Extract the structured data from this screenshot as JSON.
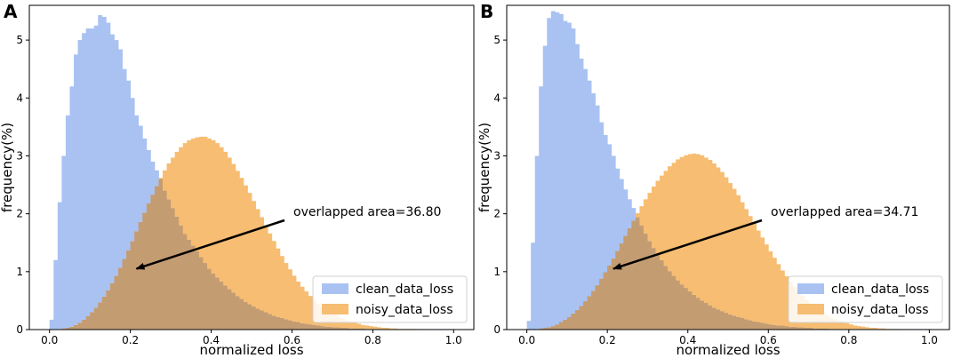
{
  "colors": {
    "clean": "#a9c2f2",
    "noisy": "#f7bd72",
    "overlap": "#c49c72",
    "arrow": "#000000"
  },
  "chart_data": [
    {
      "type": "histogram",
      "panel_label": "A",
      "xlabel": "normalized loss",
      "ylabel": "frequency(%)",
      "xlim": [
        -0.05,
        1.05
      ],
      "ylim": [
        0,
        5.6
      ],
      "xticks": [
        "0.0",
        "0.2",
        "0.4",
        "0.6",
        "0.8",
        "1.0"
      ],
      "yticks": [
        "0",
        "1",
        "2",
        "3",
        "4",
        "5"
      ],
      "bin_width": 0.01,
      "legend": [
        "clean_data_loss",
        "noisy_data_loss"
      ],
      "annotation": "overlapped area=36.80",
      "series": [
        {
          "name": "clean_data_loss",
          "x_start": 0.0,
          "values": [
            0.17,
            1.2,
            2.2,
            3.0,
            3.7,
            4.2,
            4.75,
            5.0,
            5.12,
            5.2,
            5.2,
            5.25,
            5.43,
            5.4,
            5.3,
            5.1,
            5.0,
            4.84,
            4.5,
            4.3,
            4.0,
            3.7,
            3.52,
            3.3,
            3.1,
            2.9,
            2.75,
            2.6,
            2.4,
            2.25,
            2.1,
            1.95,
            1.8,
            1.65,
            1.55,
            1.45,
            1.35,
            1.25,
            1.15,
            1.05,
            0.97,
            0.9,
            0.83,
            0.76,
            0.7,
            0.64,
            0.58,
            0.53,
            0.48,
            0.44,
            0.4,
            0.36,
            0.33,
            0.3,
            0.27,
            0.24,
            0.22,
            0.2,
            0.18,
            0.16,
            0.14,
            0.13,
            0.11,
            0.1,
            0.09,
            0.08,
            0.07,
            0.06,
            0.05,
            0.05,
            0.04,
            0.04,
            0.03,
            0.03,
            0.02,
            0.02,
            0.02,
            0.02,
            0.01,
            0.01,
            0.01,
            0.01,
            0.01,
            0.01,
            0.01,
            0.01,
            0.01,
            0.01,
            0.01,
            0.01,
            0.01,
            0.01,
            0.01,
            0.01,
            0.01,
            0.01,
            0.01,
            0.01,
            0.01,
            0.01
          ]
        },
        {
          "name": "noisy_data_loss",
          "x_start": 0.0,
          "values": [
            0.0,
            0.0,
            0.01,
            0.02,
            0.03,
            0.05,
            0.08,
            0.12,
            0.17,
            0.23,
            0.3,
            0.38,
            0.47,
            0.57,
            0.68,
            0.8,
            0.93,
            1.07,
            1.22,
            1.37,
            1.53,
            1.7,
            1.86,
            2.02,
            2.18,
            2.33,
            2.48,
            2.62,
            2.75,
            2.87,
            2.97,
            3.07,
            3.15,
            3.22,
            3.27,
            3.3,
            3.32,
            3.33,
            3.33,
            3.3,
            3.27,
            3.22,
            3.15,
            3.07,
            2.97,
            2.86,
            2.74,
            2.62,
            2.49,
            2.36,
            2.22,
            2.08,
            1.94,
            1.8,
            1.66,
            1.53,
            1.4,
            1.27,
            1.15,
            1.04,
            0.93,
            0.83,
            0.74,
            0.66,
            0.58,
            0.51,
            0.45,
            0.39,
            0.34,
            0.3,
            0.26,
            0.22,
            0.19,
            0.16,
            0.14,
            0.12,
            0.1,
            0.08,
            0.07,
            0.06,
            0.05,
            0.04,
            0.03,
            0.03,
            0.02,
            0.02,
            0.01,
            0.01,
            0.01,
            0.01,
            0.01,
            0.0,
            0.0,
            0.0,
            0.0,
            0.0,
            0.0,
            0.0,
            0.0,
            0.0
          ]
        }
      ]
    },
    {
      "type": "histogram",
      "panel_label": "B",
      "xlabel": "normalized loss",
      "ylabel": "frequency(%)",
      "xlim": [
        -0.05,
        1.05
      ],
      "ylim": [
        0,
        5.6
      ],
      "xticks": [
        "0.0",
        "0.2",
        "0.4",
        "0.6",
        "0.8",
        "1.0"
      ],
      "yticks": [
        "0",
        "1",
        "2",
        "3",
        "4",
        "5"
      ],
      "bin_width": 0.01,
      "legend": [
        "clean_data_loss",
        "noisy_data_loss"
      ],
      "annotation": "overlapped area=34.71",
      "series": [
        {
          "name": "clean_data_loss",
          "x_start": 0.0,
          "values": [
            0.15,
            1.5,
            3.0,
            4.2,
            4.9,
            5.38,
            5.5,
            5.48,
            5.45,
            5.33,
            5.3,
            5.2,
            4.93,
            4.68,
            4.5,
            4.3,
            4.08,
            3.87,
            3.58,
            3.36,
            3.2,
            3.0,
            2.78,
            2.6,
            2.42,
            2.25,
            2.1,
            1.94,
            1.8,
            1.66,
            1.53,
            1.41,
            1.3,
            1.2,
            1.1,
            1.01,
            0.93,
            0.85,
            0.78,
            0.72,
            0.66,
            0.6,
            0.55,
            0.5,
            0.46,
            0.42,
            0.38,
            0.35,
            0.32,
            0.29,
            0.26,
            0.24,
            0.22,
            0.2,
            0.18,
            0.16,
            0.14,
            0.13,
            0.12,
            0.1,
            0.09,
            0.08,
            0.07,
            0.07,
            0.06,
            0.05,
            0.05,
            0.04,
            0.04,
            0.03,
            0.03,
            0.02,
            0.02,
            0.02,
            0.02,
            0.01,
            0.01,
            0.01,
            0.01,
            0.01,
            0.01,
            0.01,
            0.01,
            0.01,
            0.01,
            0.01,
            0.01,
            0.01,
            0.01,
            0.01,
            0.01,
            0.01,
            0.01,
            0.01,
            0.01,
            0.01,
            0.01,
            0.01,
            0.01,
            0.01
          ]
        },
        {
          "name": "noisy_data_loss",
          "x_start": 0.0,
          "values": [
            0.0,
            0.0,
            0.01,
            0.02,
            0.03,
            0.04,
            0.06,
            0.09,
            0.13,
            0.17,
            0.22,
            0.28,
            0.34,
            0.41,
            0.49,
            0.58,
            0.67,
            0.77,
            0.88,
            0.99,
            1.11,
            1.23,
            1.36,
            1.49,
            1.62,
            1.75,
            1.88,
            2.01,
            2.13,
            2.25,
            2.36,
            2.47,
            2.57,
            2.66,
            2.74,
            2.82,
            2.88,
            2.94,
            2.98,
            3.01,
            3.03,
            3.04,
            3.03,
            3.01,
            2.97,
            2.93,
            2.87,
            2.8,
            2.72,
            2.63,
            2.53,
            2.43,
            2.32,
            2.2,
            2.08,
            1.96,
            1.84,
            1.71,
            1.59,
            1.47,
            1.35,
            1.24,
            1.13,
            1.02,
            0.92,
            0.83,
            0.74,
            0.66,
            0.58,
            0.51,
            0.45,
            0.39,
            0.34,
            0.29,
            0.25,
            0.21,
            0.18,
            0.15,
            0.13,
            0.11,
            0.09,
            0.07,
            0.06,
            0.05,
            0.04,
            0.03,
            0.03,
            0.02,
            0.02,
            0.01,
            0.01,
            0.01,
            0.01,
            0.0,
            0.0,
            0.0,
            0.0,
            0.0,
            0.0,
            0.0
          ]
        }
      ]
    }
  ]
}
